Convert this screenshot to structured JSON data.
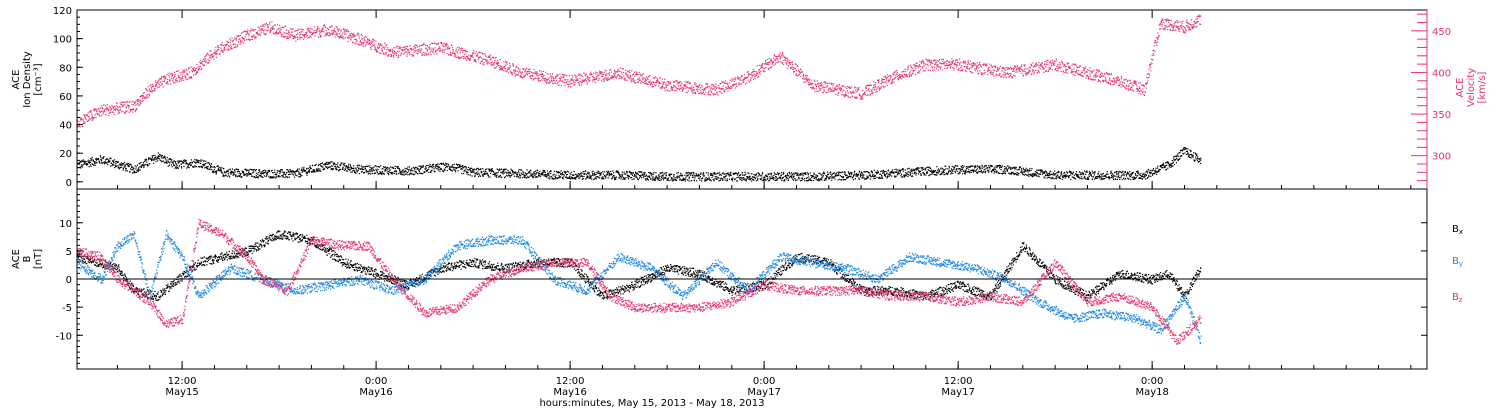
{
  "chart_data": [
    {
      "type": "scatter",
      "panel": "top",
      "x_range": [
        "2013-05-15T05:30",
        "2013-05-18T17:00"
      ],
      "xticks": [
        {
          "time": "2013-05-15T12:00",
          "hm": "12:00",
          "day": "May15"
        },
        {
          "time": "2013-05-16T00:00",
          "hm": "0:00",
          "day": "May16"
        },
        {
          "time": "2013-05-16T12:00",
          "hm": "12:00",
          "day": "May16"
        },
        {
          "time": "2013-05-17T00:00",
          "hm": "0:00",
          "day": "May17"
        },
        {
          "time": "2013-05-17T12:00",
          "hm": "12:00",
          "day": "May17"
        },
        {
          "time": "2013-05-18T00:00",
          "hm": "0:00",
          "day": "May18"
        }
      ],
      "left_axis": {
        "label_lines": [
          "ACE",
          "Ion Density",
          "[cm⁻³]"
        ],
        "range": [
          -5,
          120
        ],
        "ticks": [
          0,
          20,
          40,
          60,
          80,
          100,
          120
        ],
        "color": "#000000"
      },
      "right_axis": {
        "label_lines": [
          "ACE",
          "Velocity",
          "[km/s]"
        ],
        "range": [
          260,
          475
        ],
        "ticks": [
          300,
          350,
          400,
          450
        ],
        "color": "#e8336a"
      },
      "series": [
        {
          "axis": "left",
          "color": "#000000",
          "points": [
            [
              "2013-05-15T05:30",
              12
            ],
            [
              "2013-05-15T07:00",
              16
            ],
            [
              "2013-05-15T09:00",
              9
            ],
            [
              "2013-05-15T10:30",
              18
            ],
            [
              "2013-05-15T11:30",
              12
            ],
            [
              "2013-05-15T13:00",
              14
            ],
            [
              "2013-05-15T14:30",
              7
            ],
            [
              "2013-05-15T17:00",
              6
            ],
            [
              "2013-05-15T19:00",
              6
            ],
            [
              "2013-05-15T21:00",
              12
            ],
            [
              "2013-05-15T23:00",
              9
            ],
            [
              "2013-05-16T02:00",
              8
            ],
            [
              "2013-05-16T04:30",
              11
            ],
            [
              "2013-05-16T06:00",
              7
            ],
            [
              "2013-05-16T09:00",
              6
            ],
            [
              "2013-05-16T12:00",
              5
            ],
            [
              "2013-05-16T15:00",
              5
            ],
            [
              "2013-05-16T18:00",
              4
            ],
            [
              "2013-05-16T21:00",
              4
            ],
            [
              "2013-05-17T00:00",
              4
            ],
            [
              "2013-05-17T03:00",
              4
            ],
            [
              "2013-05-17T06:00",
              5
            ],
            [
              "2013-05-17T09:00",
              7
            ],
            [
              "2013-05-17T12:00",
              9
            ],
            [
              "2013-05-17T15:00",
              9
            ],
            [
              "2013-05-17T18:00",
              5
            ],
            [
              "2013-05-17T21:00",
              5
            ],
            [
              "2013-05-17T23:30",
              5
            ],
            [
              "2013-05-18T01:00",
              12
            ],
            [
              "2013-05-18T02:00",
              22
            ],
            [
              "2013-05-18T03:00",
              15
            ]
          ]
        },
        {
          "axis": "right",
          "color": "#e8336a",
          "points": [
            [
              "2013-05-15T05:30",
              340
            ],
            [
              "2013-05-15T07:00",
              355
            ],
            [
              "2013-05-15T09:00",
              360
            ],
            [
              "2013-05-15T10:00",
              380
            ],
            [
              "2013-05-15T11:00",
              392
            ],
            [
              "2013-05-15T12:30",
              400
            ],
            [
              "2013-05-15T14:00",
              425
            ],
            [
              "2013-05-15T16:00",
              445
            ],
            [
              "2013-05-15T17:30",
              455
            ],
            [
              "2013-05-15T19:00",
              445
            ],
            [
              "2013-05-15T21:00",
              452
            ],
            [
              "2013-05-15T23:00",
              440
            ],
            [
              "2013-05-16T01:00",
              425
            ],
            [
              "2013-05-16T04:00",
              430
            ],
            [
              "2013-05-16T07:00",
              415
            ],
            [
              "2013-05-16T09:00",
              400
            ],
            [
              "2013-05-16T12:00",
              390
            ],
            [
              "2013-05-16T15:00",
              400
            ],
            [
              "2013-05-16T18:00",
              385
            ],
            [
              "2013-05-16T21:00",
              380
            ],
            [
              "2013-05-16T23:00",
              395
            ],
            [
              "2013-05-17T01:00",
              420
            ],
            [
              "2013-05-17T03:00",
              385
            ],
            [
              "2013-05-17T06:00",
              375
            ],
            [
              "2013-05-17T08:00",
              395
            ],
            [
              "2013-05-17T10:00",
              410
            ],
            [
              "2013-05-17T12:00",
              410
            ],
            [
              "2013-05-17T15:00",
              400
            ],
            [
              "2013-05-17T18:00",
              410
            ],
            [
              "2013-05-17T21:00",
              395
            ],
            [
              "2013-05-17T23:30",
              380
            ],
            [
              "2013-05-18T00:30",
              460
            ],
            [
              "2013-05-18T02:00",
              455
            ],
            [
              "2013-05-18T03:00",
              465
            ]
          ]
        }
      ]
    },
    {
      "type": "scatter",
      "panel": "bottom",
      "x_range": [
        "2013-05-15T05:30",
        "2013-05-18T17:00"
      ],
      "xlabel": "hours:minutes, May 15, 2013 - May 18, 2013",
      "left_axis": {
        "label_lines": [
          "ACE",
          "B",
          "[nT]"
        ],
        "range": [
          -16,
          16
        ],
        "ticks": [
          -10,
          -5,
          0,
          5,
          10
        ],
        "color": "#000000"
      },
      "zero_line": true,
      "series": [
        {
          "name": "B",
          "sub": "x",
          "color": "#000000",
          "points": [
            [
              "2013-05-15T05:30",
              4
            ],
            [
              "2013-05-15T08:00",
              2
            ],
            [
              "2013-05-15T09:00",
              -2
            ],
            [
              "2013-05-15T10:30",
              -3
            ],
            [
              "2013-05-15T13:00",
              3
            ],
            [
              "2013-05-15T16:00",
              5
            ],
            [
              "2013-05-15T18:00",
              8
            ],
            [
              "2013-05-15T20:00",
              7
            ],
            [
              "2013-05-15T22:00",
              3
            ],
            [
              "2013-05-16T00:00",
              1
            ],
            [
              "2013-05-16T02:00",
              -1
            ],
            [
              "2013-05-16T04:00",
              2
            ],
            [
              "2013-05-16T06:00",
              3
            ],
            [
              "2013-05-16T08:00",
              2
            ],
            [
              "2013-05-16T10:00",
              3
            ],
            [
              "2013-05-16T12:00",
              3
            ],
            [
              "2013-05-16T14:00",
              -3
            ],
            [
              "2013-05-16T16:00",
              -1
            ],
            [
              "2013-05-16T18:00",
              2
            ],
            [
              "2013-05-16T20:00",
              1
            ],
            [
              "2013-05-16T22:00",
              -2
            ],
            [
              "2013-05-17T00:00",
              -1
            ],
            [
              "2013-05-17T02:00",
              4
            ],
            [
              "2013-05-17T04:00",
              3
            ],
            [
              "2013-05-17T06:00",
              -2
            ],
            [
              "2013-05-17T08:00",
              -2
            ],
            [
              "2013-05-17T10:00",
              -3
            ],
            [
              "2013-05-17T12:00",
              -1
            ],
            [
              "2013-05-17T14:00",
              -3
            ],
            [
              "2013-05-17T16:00",
              6
            ],
            [
              "2013-05-17T18:00",
              0
            ],
            [
              "2013-05-17T20:00",
              -3
            ],
            [
              "2013-05-17T22:00",
              1
            ],
            [
              "2013-05-18T00:00",
              0
            ],
            [
              "2013-05-18T01:00",
              1
            ],
            [
              "2013-05-18T02:00",
              -3
            ],
            [
              "2013-05-18T03:00",
              2
            ]
          ]
        },
        {
          "name": "B",
          "sub": "y",
          "color": "#1e88e5",
          "points": [
            [
              "2013-05-15T05:30",
              3
            ],
            [
              "2013-05-15T07:00",
              0
            ],
            [
              "2013-05-15T08:00",
              6
            ],
            [
              "2013-05-15T09:00",
              8
            ],
            [
              "2013-05-15T10:00",
              -3
            ],
            [
              "2013-05-15T11:00",
              8
            ],
            [
              "2013-05-15T12:00",
              4
            ],
            [
              "2013-05-15T13:00",
              -3
            ],
            [
              "2013-05-15T15:00",
              2
            ],
            [
              "2013-05-15T17:00",
              0
            ],
            [
              "2013-05-15T19:00",
              -2
            ],
            [
              "2013-05-15T21:00",
              -1
            ],
            [
              "2013-05-15T23:00",
              0
            ],
            [
              "2013-05-16T01:00",
              -2
            ],
            [
              "2013-05-16T03:00",
              0
            ],
            [
              "2013-05-16T05:00",
              6
            ],
            [
              "2013-05-16T07:00",
              7
            ],
            [
              "2013-05-16T09:00",
              7
            ],
            [
              "2013-05-16T11:00",
              0
            ],
            [
              "2013-05-16T13:00",
              -2
            ],
            [
              "2013-05-16T15:00",
              4
            ],
            [
              "2013-05-16T17:00",
              2
            ],
            [
              "2013-05-16T19:00",
              -3
            ],
            [
              "2013-05-16T21:00",
              3
            ],
            [
              "2013-05-16T23:00",
              -2
            ],
            [
              "2013-05-17T01:00",
              4
            ],
            [
              "2013-05-17T03:00",
              3
            ],
            [
              "2013-05-17T05:00",
              2
            ],
            [
              "2013-05-17T07:00",
              0
            ],
            [
              "2013-05-17T09:00",
              4
            ],
            [
              "2013-05-17T11:00",
              3
            ],
            [
              "2013-05-17T13:00",
              2
            ],
            [
              "2013-05-17T15:00",
              0
            ],
            [
              "2013-05-17T17:00",
              -4
            ],
            [
              "2013-05-17T19:00",
              -7
            ],
            [
              "2013-05-17T21:00",
              -6
            ],
            [
              "2013-05-17T23:00",
              -7
            ],
            [
              "2013-05-18T00:30",
              -9
            ],
            [
              "2013-05-18T02:00",
              -3
            ],
            [
              "2013-05-18T03:00",
              -11
            ]
          ]
        },
        {
          "name": "B",
          "sub": "z",
          "color": "#e8336a",
          "points": [
            [
              "2013-05-15T05:30",
              5
            ],
            [
              "2013-05-15T07:00",
              4
            ],
            [
              "2013-05-15T08:00",
              0
            ],
            [
              "2013-05-15T09:00",
              -2
            ],
            [
              "2013-05-15T10:00",
              -4
            ],
            [
              "2013-05-15T11:00",
              -8
            ],
            [
              "2013-05-15T12:00",
              -7
            ],
            [
              "2013-05-15T13:00",
              10
            ],
            [
              "2013-05-15T14:30",
              8
            ],
            [
              "2013-05-15T16:00",
              4
            ],
            [
              "2013-05-15T17:00",
              0
            ],
            [
              "2013-05-15T18:30",
              -2
            ],
            [
              "2013-05-15T20:00",
              7
            ],
            [
              "2013-05-15T22:00",
              6
            ],
            [
              "2013-05-15T23:30",
              6
            ],
            [
              "2013-05-16T01:00",
              0
            ],
            [
              "2013-05-16T02:00",
              -3
            ],
            [
              "2013-05-16T03:00",
              -6
            ],
            [
              "2013-05-16T05:00",
              -5
            ],
            [
              "2013-05-16T07:00",
              0
            ],
            [
              "2013-05-16T09:00",
              2
            ],
            [
              "2013-05-16T11:00",
              3
            ],
            [
              "2013-05-16T13:00",
              3
            ],
            [
              "2013-05-16T14:30",
              -3
            ],
            [
              "2013-05-16T16:00",
              -5
            ],
            [
              "2013-05-16T18:00",
              -5
            ],
            [
              "2013-05-16T20:00",
              -5
            ],
            [
              "2013-05-16T22:00",
              -4
            ],
            [
              "2013-05-17T00:00",
              -1
            ],
            [
              "2013-05-17T02:00",
              -2
            ],
            [
              "2013-05-17T04:00",
              -2
            ],
            [
              "2013-05-17T06:00",
              -2
            ],
            [
              "2013-05-17T08:00",
              -3
            ],
            [
              "2013-05-17T10:00",
              -3
            ],
            [
              "2013-05-17T12:00",
              -4
            ],
            [
              "2013-05-17T14:00",
              -3
            ],
            [
              "2013-05-17T16:00",
              -4
            ],
            [
              "2013-05-17T18:00",
              3
            ],
            [
              "2013-05-17T20:00",
              -4
            ],
            [
              "2013-05-17T22:00",
              -3
            ],
            [
              "2013-05-18T00:00",
              -5
            ],
            [
              "2013-05-18T01:30",
              -11
            ],
            [
              "2013-05-18T03:00",
              -7
            ]
          ]
        }
      ]
    }
  ]
}
